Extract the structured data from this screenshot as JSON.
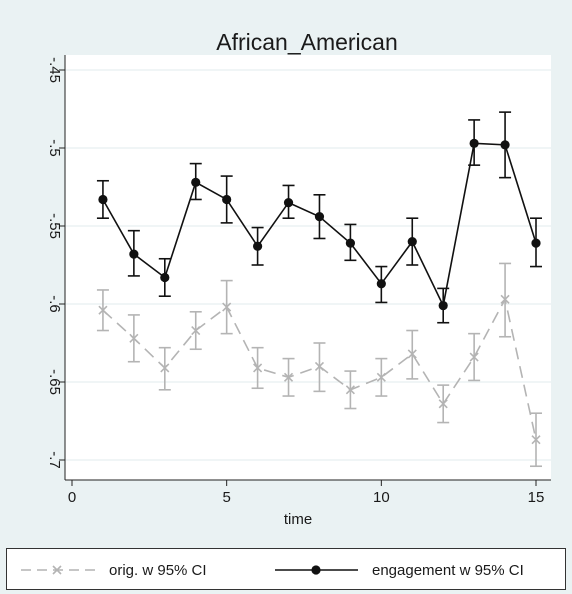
{
  "chart_data": {
    "type": "line",
    "title": "African_American",
    "xlabel": "time",
    "ylabel": "",
    "xlim": [
      -0.5,
      15.5
    ],
    "ylim": [
      -0.715,
      -0.445
    ],
    "x_ticks": [
      0,
      5,
      10,
      15
    ],
    "x_tick_labels": [
      "0",
      "5",
      "10",
      "15"
    ],
    "y_ticks": [
      -0.45,
      -0.5,
      -0.55,
      -0.6,
      -0.65,
      -0.7
    ],
    "y_tick_labels": [
      "-.45",
      "-.5",
      "-.55",
      "-.6",
      "-.65",
      "-.7"
    ],
    "grid": true,
    "legend_position": "bottom",
    "x": [
      1,
      2,
      3,
      4,
      5,
      6,
      7,
      8,
      9,
      10,
      11,
      12,
      13,
      14,
      15
    ],
    "series": [
      {
        "name": "orig. w 95% CI",
        "color": "#b4b4b4",
        "line": "dashed",
        "marker": "x",
        "values": [
          -0.604,
          -0.622,
          -0.641,
          -0.617,
          -0.602,
          -0.641,
          -0.647,
          -0.64,
          -0.655,
          -0.647,
          -0.632,
          -0.664,
          -0.634,
          -0.597,
          -0.687
        ],
        "ci_low": [
          -0.617,
          -0.637,
          -0.655,
          -0.629,
          -0.619,
          -0.654,
          -0.659,
          -0.656,
          -0.667,
          -0.659,
          -0.648,
          -0.676,
          -0.649,
          -0.621,
          -0.704
        ],
        "ci_high": [
          -0.591,
          -0.607,
          -0.628,
          -0.605,
          -0.585,
          -0.628,
          -0.635,
          -0.625,
          -0.643,
          -0.635,
          -0.617,
          -0.652,
          -0.619,
          -0.574,
          -0.67
        ]
      },
      {
        "name": "engagement w 95% CI",
        "color": "#111111",
        "line": "solid",
        "marker": "circle",
        "values": [
          -0.533,
          -0.568,
          -0.583,
          -0.522,
          -0.533,
          -0.563,
          -0.535,
          -0.544,
          -0.561,
          -0.587,
          -0.56,
          -0.601,
          -0.497,
          -0.498,
          -0.561
        ],
        "ci_low": [
          -0.545,
          -0.582,
          -0.595,
          -0.533,
          -0.548,
          -0.575,
          -0.545,
          -0.558,
          -0.572,
          -0.599,
          -0.575,
          -0.612,
          -0.511,
          -0.519,
          -0.576
        ],
        "ci_high": [
          -0.521,
          -0.553,
          -0.571,
          -0.51,
          -0.518,
          -0.551,
          -0.524,
          -0.53,
          -0.549,
          -0.576,
          -0.545,
          -0.59,
          -0.482,
          -0.477,
          -0.545
        ]
      }
    ]
  }
}
